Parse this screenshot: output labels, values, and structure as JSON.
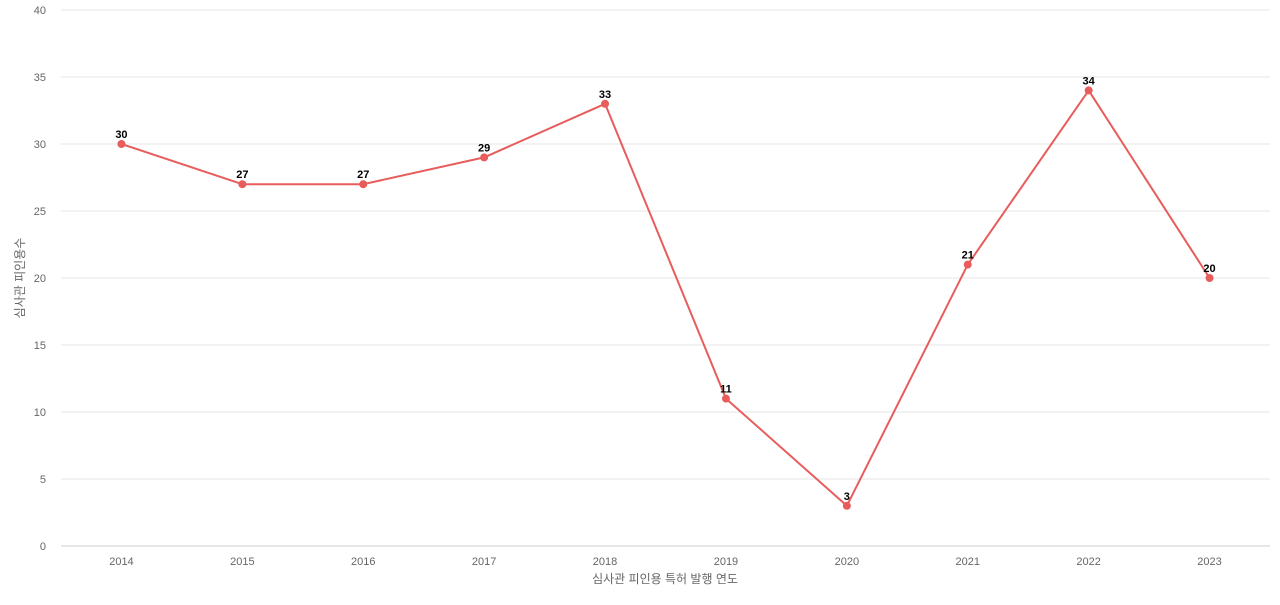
{
  "chart_data": {
    "type": "line",
    "title": "",
    "xlabel": "심사관 피인용 특허 발행 연도",
    "ylabel": "심사관 피인용수",
    "categories": [
      "2014",
      "2015",
      "2016",
      "2017",
      "2018",
      "2019",
      "2020",
      "2021",
      "2022",
      "2023"
    ],
    "series": [
      {
        "values": [
          30,
          27,
          27,
          29,
          33,
          11,
          3,
          21,
          34,
          20
        ],
        "color": "#e85c5c"
      }
    ],
    "ylim": [
      0,
      40
    ],
    "yticks": [
      0,
      5,
      10,
      15,
      20,
      25,
      30,
      35,
      40
    ],
    "grid": true,
    "legend": "none",
    "data_labels": true
  }
}
